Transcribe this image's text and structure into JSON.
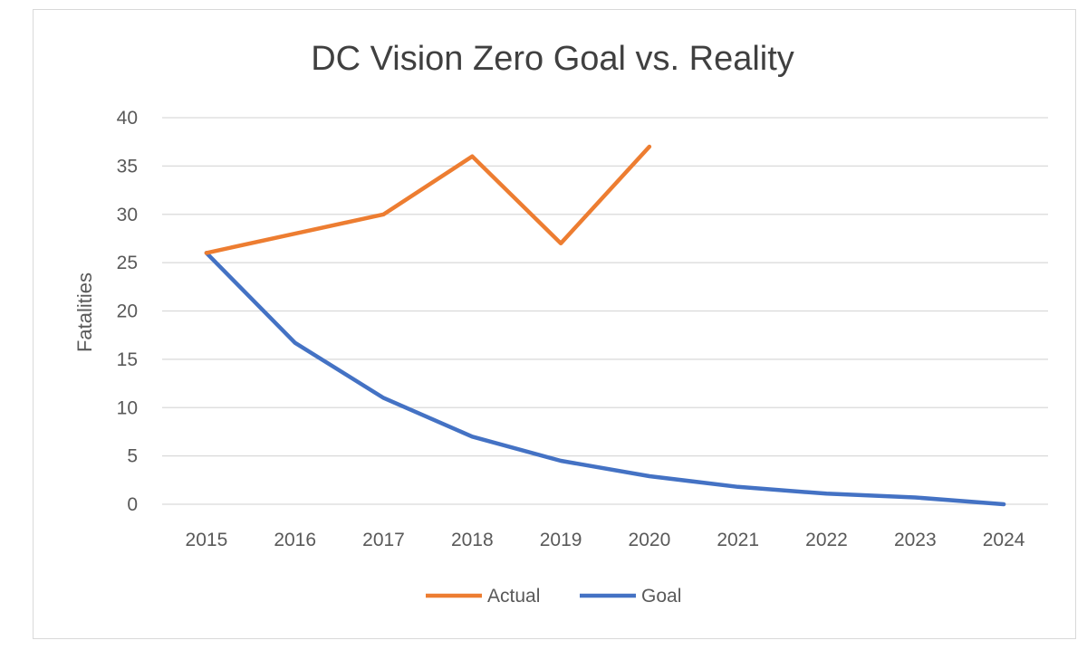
{
  "chart_data": {
    "type": "line",
    "title": "DC Vision Zero Goal vs. Reality",
    "xlabel": "",
    "ylabel": "Fatalities",
    "categories": [
      "2015",
      "2016",
      "2017",
      "2018",
      "2019",
      "2020",
      "2021",
      "2022",
      "2023",
      "2024"
    ],
    "y_ticks": [
      "0",
      "5",
      "10",
      "15",
      "20",
      "25",
      "30",
      "35",
      "40"
    ],
    "ylim": [
      0,
      40
    ],
    "grid": "horizontal",
    "legend_position": "bottom",
    "series": [
      {
        "name": "Actual",
        "color": "#ED7D31",
        "values": [
          26,
          28,
          30,
          36,
          27,
          37,
          null,
          null,
          null,
          null
        ]
      },
      {
        "name": "Goal",
        "color": "#4472C4",
        "values": [
          26,
          16.7,
          11,
          7,
          4.5,
          2.9,
          1.8,
          1.1,
          0.7,
          0
        ]
      }
    ]
  }
}
